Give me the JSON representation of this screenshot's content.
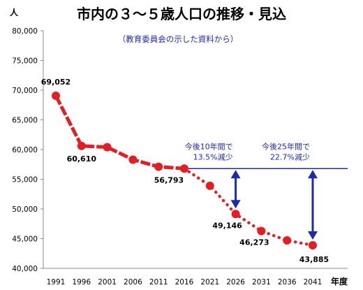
{
  "chart_data": {
    "type": "line",
    "title": "市内の３〜５歳人口の推移・見込",
    "subtitle": "（教育委員会の示した資料から）",
    "ylabel": "人",
    "xlabel": "年度",
    "ylim": [
      40000,
      80000
    ],
    "yticks": [
      40000,
      45000,
      50000,
      55000,
      60000,
      65000,
      70000,
      75000,
      80000
    ],
    "ytick_labels": [
      "40,000",
      "45,000",
      "50,000",
      "55,000",
      "60,000",
      "65,000",
      "70,000",
      "75,000",
      "80,000"
    ],
    "categories": [
      "1991",
      "1996",
      "2001",
      "2006",
      "2011",
      "2016",
      "2021",
      "2026",
      "2031",
      "2036",
      "2041"
    ],
    "series": [
      {
        "color": "#e31e24",
        "values": [
          69052,
          60610,
          60400,
          58300,
          57100,
          56793,
          53900,
          49146,
          46273,
          44700,
          43885
        ],
        "actual_until_index": 5
      }
    ],
    "data_labels": [
      {
        "index": 0,
        "text": "69,052"
      },
      {
        "index": 1,
        "text": "60,610"
      },
      {
        "index": 5,
        "text": "56,793"
      },
      {
        "index": 7,
        "text": "49,146"
      },
      {
        "index": 8,
        "text": "46,273"
      },
      {
        "index": 10,
        "text": "43,885"
      }
    ],
    "reference_line": {
      "value": 56793,
      "from_index": 5,
      "color": "#1f2aa8"
    },
    "annotations": [
      {
        "index": 7,
        "line1": "今後10年間で",
        "line2": "13.5%減少"
      },
      {
        "index": 10,
        "line1": "今後25年間で",
        "line2": "22.7%減少"
      }
    ],
    "grid": false,
    "legend": "none"
  }
}
